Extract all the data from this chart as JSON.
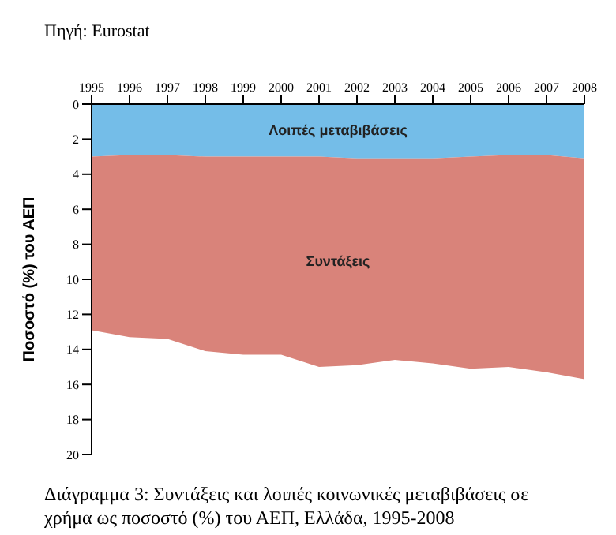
{
  "chart_data": {
    "type": "area",
    "title": "Διάγραμμα 3: Συντάξεις και λοιπές κοινωνικές μεταβιβάσεις σε χρήμα ως ποσοστό (%) του ΑΕΠ, Ελλάδα, 1995-2008",
    "ylabel": "Ποσοστό (%) του ΑΕΠ",
    "annotations": [
      "Πηγή: Eurostat"
    ],
    "categories": [
      "1995",
      "1996",
      "1997",
      "1998",
      "1999",
      "2000",
      "2001",
      "2002",
      "2003",
      "2004",
      "2005",
      "2006",
      "2007",
      "2008"
    ],
    "stacked": true,
    "series": [
      {
        "name": "Λοιπές μεταβιβάσεις",
        "color": "#74bde8",
        "values": [
          3.0,
          2.9,
          2.9,
          3.0,
          3.0,
          3.0,
          3.0,
          3.1,
          3.1,
          3.1,
          3.0,
          2.9,
          2.9,
          3.1
        ]
      },
      {
        "name": "Συντάξεις",
        "color": "#d9837a",
        "values": [
          9.9,
          10.4,
          10.5,
          11.1,
          11.3,
          11.3,
          12.0,
          11.8,
          11.5,
          11.7,
          12.1,
          12.1,
          12.4,
          12.6
        ]
      }
    ],
    "ylim": [
      20,
      0
    ],
    "yticks": [
      0,
      2,
      4,
      6,
      8,
      10,
      12,
      14,
      16,
      18,
      20
    ],
    "legend": false
  }
}
